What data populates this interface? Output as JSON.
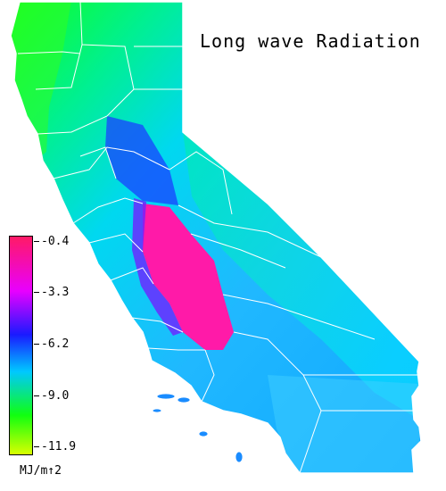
{
  "title": "Long wave Radiation",
  "legend": {
    "ticks": [
      "-0.4",
      "-3.3",
      "-6.2",
      "-9.0",
      "-11.9"
    ],
    "units": "MJ/m↑2",
    "colors": [
      "#ff1a66",
      "#e800ff",
      "#1a1aff",
      "#00c8ff",
      "#10ff10",
      "#d8ff00"
    ]
  },
  "map": {
    "region": "California",
    "colors": {
      "cool": "#00ff60",
      "mid": "#18b8ff",
      "warm": "#ff18a0",
      "boundary": "#ffffff"
    }
  }
}
